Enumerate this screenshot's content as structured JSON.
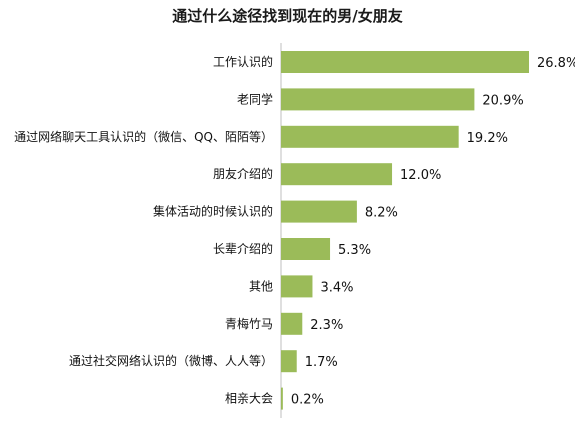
{
  "chart_data": {
    "type": "bar",
    "orientation": "horizontal",
    "title": "通过什么途径找到现在的男/女朋友",
    "categories": [
      "工作认识的",
      "老同学",
      "通过网络聊天工具认识的（微信、QQ、陌陌等）",
      "朋友介绍的",
      "集体活动的时候认识的",
      "长辈介绍的",
      "其他",
      "青梅竹马",
      "通过社交网络认识的（微博、人人等）",
      "相亲大会"
    ],
    "values": [
      26.8,
      20.9,
      19.2,
      12.0,
      8.2,
      5.3,
      3.4,
      2.3,
      1.7,
      0.2
    ],
    "value_labels": [
      "26.8%",
      "20.9%",
      "19.2%",
      "12.0%",
      "8.2%",
      "5.3%",
      "3.4%",
      "2.3%",
      "1.7%",
      "0.2%"
    ],
    "xlim": [
      0,
      26.8
    ],
    "grid": false,
    "legend": "none",
    "bar_color": "#9bbb59",
    "axis_color": "#bfbfbf"
  }
}
